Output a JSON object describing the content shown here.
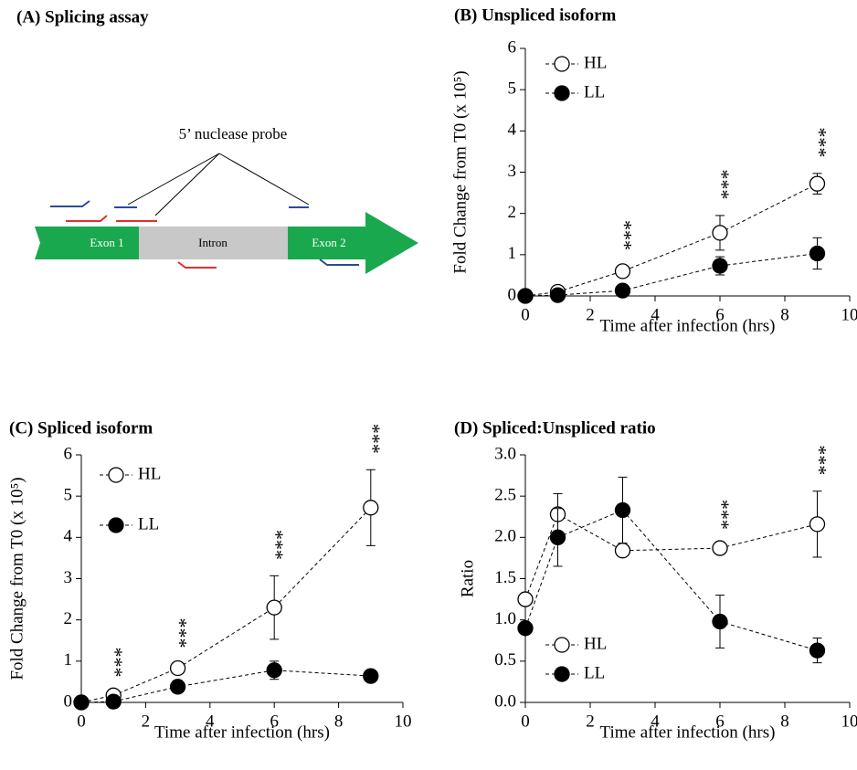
{
  "diagram": {
    "title": "(A) Splicing assay",
    "probe_label": "5’ nuclease probe",
    "exon1": "Exon 1",
    "intron": "Intron",
    "exon2": "Exon 2"
  },
  "chart_data": [
    {
      "type": "line",
      "title": "(B) Unspliced isoform",
      "xlabel": "Time after infection (hrs)",
      "ylabel": "Fold Change from T0 (x 10⁵)",
      "x": [
        0,
        1,
        3,
        6,
        9
      ],
      "xlim": [
        0,
        10
      ],
      "xticks": [
        0,
        2,
        4,
        6,
        8,
        10
      ],
      "ylim": [
        0,
        6
      ],
      "yticks": [
        0,
        1,
        2,
        3,
        4,
        5,
        6
      ],
      "legend": "upper left",
      "linestyle": "dashed",
      "series": [
        {
          "name": "HL",
          "color": "#000000",
          "fill": "#ffffff",
          "values": [
            0,
            0.1,
            0.6,
            1.53,
            2.72
          ],
          "errors": [
            0,
            0.05,
            0.12,
            0.42,
            0.25
          ]
        },
        {
          "name": "LL",
          "color": "#000000",
          "fill": "#000000",
          "values": [
            0,
            0.02,
            0.13,
            0.73,
            1.03
          ],
          "errors": [
            0,
            0.02,
            0.05,
            0.22,
            0.38
          ]
        }
      ],
      "annotations": [
        {
          "x": 3,
          "text": "***"
        },
        {
          "x": 6,
          "text": "***"
        },
        {
          "x": 9,
          "text": "***"
        }
      ]
    },
    {
      "type": "line",
      "title": "(C) Spliced isoform",
      "xlabel": "Time after infection (hrs)",
      "ylabel": "Fold Change from T0 (x 10⁵)",
      "x": [
        0,
        1,
        3,
        6,
        9
      ],
      "xlim": [
        0,
        10
      ],
      "xticks": [
        0,
        2,
        4,
        6,
        8,
        10
      ],
      "ylim": [
        0,
        6
      ],
      "yticks": [
        0,
        1,
        2,
        3,
        4,
        5,
        6
      ],
      "legend": "upper left",
      "linestyle": "dashed",
      "series": [
        {
          "name": "HL",
          "color": "#000000",
          "fill": "#ffffff",
          "values": [
            0,
            0.17,
            0.83,
            2.3,
            4.72
          ],
          "errors": [
            0,
            0.05,
            0.1,
            0.77,
            0.92
          ]
        },
        {
          "name": "LL",
          "color": "#000000",
          "fill": "#000000",
          "values": [
            0,
            0.02,
            0.38,
            0.78,
            0.64
          ],
          "errors": [
            0,
            0.01,
            0.05,
            0.22,
            0.05
          ]
        }
      ],
      "annotations": [
        {
          "x": 1,
          "text": "***"
        },
        {
          "x": 3,
          "text": "***"
        },
        {
          "x": 6,
          "text": "***"
        },
        {
          "x": 9,
          "text": "***"
        }
      ]
    },
    {
      "type": "line",
      "title": "(D) Spliced:Unspliced ratio",
      "xlabel": "Time after infection (hrs)",
      "ylabel": "Ratio",
      "x": [
        0,
        1,
        3,
        6,
        9
      ],
      "xlim": [
        0,
        10
      ],
      "xticks": [
        0,
        2,
        4,
        6,
        8,
        10
      ],
      "ylim": [
        0,
        3
      ],
      "yticks": [
        {
          "value": 0,
          "label": "0.0"
        },
        0.5,
        {
          "value": 1,
          "label": "1.0"
        },
        1.5,
        {
          "value": 2,
          "label": "2.0"
        },
        2.5,
        {
          "value": 3,
          "label": "3.0"
        }
      ],
      "legend": "lower left",
      "linestyle": "dashed",
      "series": [
        {
          "name": "HL",
          "color": "#000000",
          "fill": "#ffffff",
          "values": [
            1.25,
            2.28,
            1.84,
            1.87,
            2.16
          ],
          "errors": [
            0.05,
            0.25,
            0.03,
            0.03,
            0.4
          ]
        },
        {
          "name": "LL",
          "color": "#000000",
          "fill": "#000000",
          "values": [
            0.9,
            2.0,
            2.33,
            0.98,
            0.63
          ],
          "errors": [
            0.05,
            0.35,
            0.4,
            0.32,
            0.15
          ]
        }
      ],
      "annotations": [
        {
          "x": 6,
          "text": "***"
        },
        {
          "x": 9,
          "text": "***"
        }
      ]
    }
  ]
}
